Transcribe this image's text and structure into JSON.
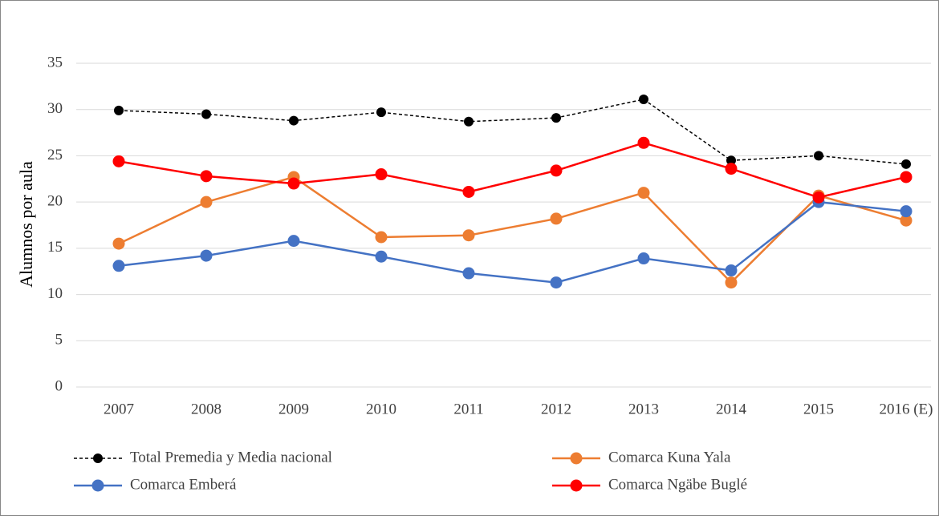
{
  "chart_data": {
    "type": "line",
    "y_label": "Alumnos por aula",
    "categories": [
      "2007",
      "2008",
      "2009",
      "2010",
      "2011",
      "2012",
      "2013",
      "2014",
      "2015",
      "2016 (E)"
    ],
    "series": [
      {
        "name": "Total Premedia y Media nacional",
        "color": "#000000",
        "linestyle": "dashed",
        "values": [
          29.9,
          29.5,
          28.8,
          29.7,
          28.7,
          29.1,
          31.1,
          24.5,
          25.0,
          24.1
        ]
      },
      {
        "name": "Comarca  Kuna Yala",
        "color": "#ed7d31",
        "linestyle": "solid",
        "values": [
          15.5,
          20.0,
          22.7,
          16.2,
          16.4,
          18.2,
          21.0,
          11.3,
          20.7,
          18.0
        ]
      },
      {
        "name": "Comarca Emberá",
        "color": "#4472c4",
        "linestyle": "solid",
        "values": [
          13.1,
          14.2,
          15.8,
          14.1,
          12.3,
          11.3,
          13.9,
          12.6,
          20.0,
          19.0
        ]
      },
      {
        "name": "Comarca  Ngäbe Buglé",
        "color": "#ff0000",
        "linestyle": "solid",
        "values": [
          24.4,
          22.8,
          22.0,
          23.0,
          21.1,
          23.4,
          26.4,
          23.6,
          20.5,
          22.7
        ]
      }
    ],
    "ylim": [
      0,
      35
    ],
    "yticks": [
      0,
      5,
      10,
      15,
      20,
      25,
      30,
      35
    ],
    "grid": true
  }
}
